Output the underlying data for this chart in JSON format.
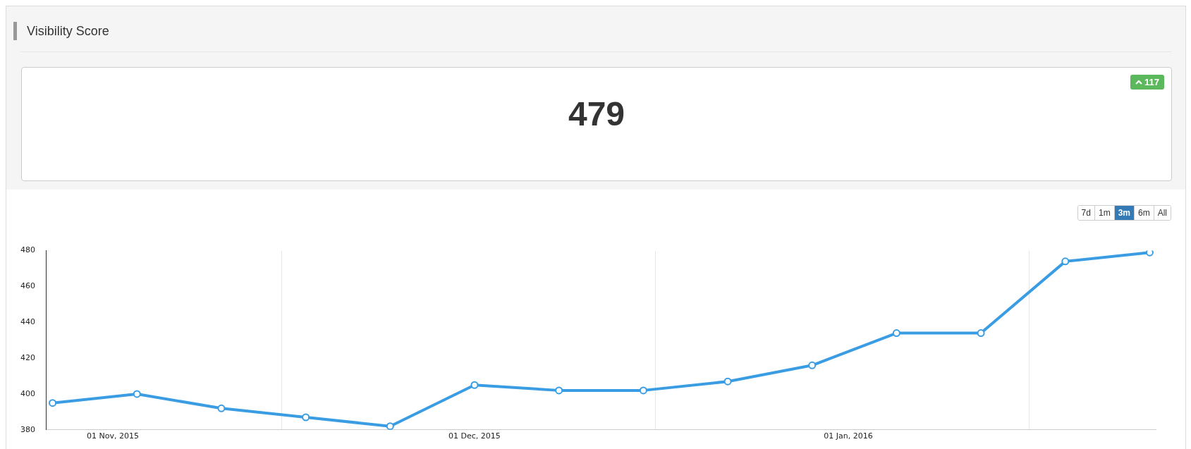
{
  "chart_data": {
    "type": "line",
    "title": "Visibility Score",
    "subtitle": "479",
    "annotations": [
      "117",
      "7d",
      "1m",
      "3m",
      "6m",
      "All"
    ],
    "x": [
      "2015-10-27",
      "2015-11-03",
      "2015-11-10",
      "2015-11-17",
      "2015-11-24",
      "2015-12-01",
      "2015-12-08",
      "2015-12-15",
      "2015-12-22",
      "2015-12-29",
      "2016-01-05",
      "2016-01-12",
      "2016-01-19",
      "2016-01-26"
    ],
    "series": [
      {
        "color": "#3a9de3",
        "values": [
          395,
          400,
          392,
          387,
          382,
          405,
          402,
          402,
          407,
          416,
          434,
          434,
          474,
          479
        ]
      }
    ],
    "xlim": [
      "2015-10-26T12:00",
      "2016-01-26T12:00"
    ],
    "xticks": [
      {
        "value": "2015-11-01",
        "label": "01 Nov, 2015"
      },
      {
        "value": "2015-11-15",
        "label": null
      },
      {
        "value": "2015-12-01",
        "label": "01 Dec, 2015"
      },
      {
        "value": "2015-12-16",
        "label": null
      },
      {
        "value": "2016-01-01",
        "label": "01 Jan, 2016"
      },
      {
        "value": "2016-01-16",
        "label": null
      }
    ],
    "ylim": [
      380,
      480
    ],
    "yticks": [
      380,
      400,
      420,
      440,
      460,
      480
    ],
    "grid": "x",
    "legend": false,
    "marker": "circle",
    "line_style": "solid"
  }
}
